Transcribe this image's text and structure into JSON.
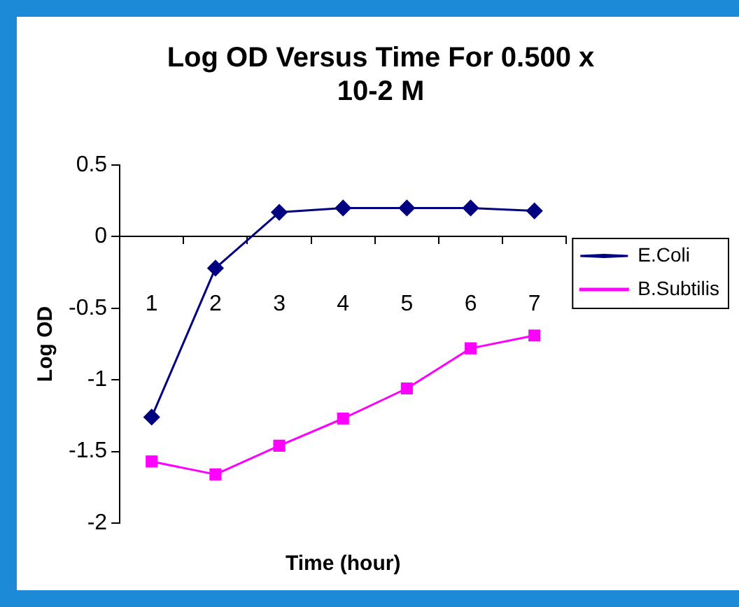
{
  "chart_data": {
    "type": "line",
    "title": "Log OD Versus Time For 0.500 x 10-2 M",
    "xlabel": "Time (hour)",
    "ylabel": "Log OD",
    "categories": [
      "1",
      "2",
      "3",
      "4",
      "5",
      "6",
      "7"
    ],
    "series": [
      {
        "name": "E.Coli",
        "color": "#000080",
        "marker": "diamond",
        "values": [
          -1.26,
          -0.22,
          0.17,
          0.2,
          0.2,
          0.2,
          0.18
        ]
      },
      {
        "name": "B.Subtilis",
        "color": "#ff00ff",
        "marker": "square",
        "values": [
          -1.57,
          -1.66,
          -1.46,
          -1.27,
          -1.06,
          -0.78,
          -0.69
        ]
      }
    ],
    "ylim": [
      -2,
      0.5
    ],
    "yticks": [
      -2,
      -1.5,
      -1,
      -0.5,
      0,
      0.5
    ],
    "grid": false,
    "legend": "right",
    "line_style": "solid"
  }
}
